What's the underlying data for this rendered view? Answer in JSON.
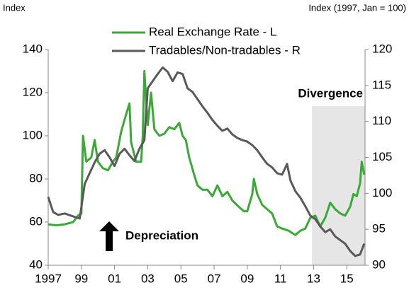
{
  "chart_data": {
    "type": "line",
    "y_label": "Index",
    "y2_label": "Index (1997, Jan = 100)",
    "annotations": [
      "Divergence",
      "Depreciation"
    ],
    "shaded_region": [
      2012.9,
      2016.1
    ],
    "xlim": [
      1997,
      2016.1
    ],
    "xticks": [
      1997,
      {
        "value": 1999,
        "label": "99"
      },
      {
        "value": 2001,
        "label": "01"
      },
      {
        "value": 2003,
        "label": "03"
      },
      {
        "value": 2005,
        "label": "05"
      },
      {
        "value": 2007,
        "label": "07"
      },
      {
        "value": 2009,
        "label": "09"
      },
      {
        "value": 2011,
        "label": "11"
      },
      {
        "value": 2013,
        "label": "13"
      },
      {
        "value": 2015,
        "label": "15"
      }
    ],
    "ylim": [
      40,
      140
    ],
    "yticks": [
      40,
      60,
      80,
      100,
      120,
      140
    ],
    "y2lim": [
      90,
      120
    ],
    "y2ticks": [
      90,
      95,
      100,
      105,
      110,
      115,
      120
    ],
    "series": [
      {
        "name": "Real Exchange Rate - L",
        "color": "#3aa935",
        "axis": "y",
        "x": [
          1997.0,
          1997.5,
          1998.0,
          1998.5,
          1998.8,
          1999.0,
          1999.1,
          1999.3,
          1999.6,
          1999.8,
          2000.0,
          2000.3,
          2000.6,
          2000.9,
          2001.1,
          2001.4,
          2001.7,
          2001.9,
          2002.0,
          2002.3,
          2002.6,
          2002.7,
          2002.8,
          2003.0,
          2003.2,
          2003.4,
          2003.7,
          2004.0,
          2004.3,
          2004.6,
          2004.9,
          2005.1,
          2005.3,
          2005.5,
          2005.8,
          2006.0,
          2006.3,
          2006.6,
          2006.9,
          2007.2,
          2007.5,
          2007.8,
          2008.1,
          2008.5,
          2008.8,
          2009.0,
          2009.3,
          2009.4,
          2009.6,
          2009.9,
          2010.2,
          2010.5,
          2010.8,
          2011.1,
          2011.5,
          2011.9,
          2012.2,
          2012.5,
          2012.8,
          2013.1,
          2013.4,
          2013.7,
          2014.0,
          2014.3,
          2014.6,
          2014.9,
          2015.2,
          2015.4,
          2015.6,
          2015.8,
          2015.9,
          2016.05
        ],
        "values": [
          59,
          58.5,
          59,
          60,
          63,
          64,
          100,
          88,
          90,
          98,
          88,
          85,
          84,
          88,
          90,
          102,
          110,
          115,
          97,
          88,
          88,
          100,
          130,
          105,
          120,
          103,
          100,
          101,
          104,
          103,
          106,
          100,
          98,
          90,
          82,
          77,
          75,
          75,
          72,
          77,
          72,
          74,
          70,
          67,
          65,
          65,
          73,
          80,
          73,
          68,
          66,
          64,
          58,
          57,
          56,
          54,
          56,
          57,
          62,
          63,
          58,
          62,
          69,
          66,
          64,
          63,
          67,
          73,
          72,
          78,
          88,
          82
        ]
      },
      {
        "name": "Tradables/Non-tradables - R",
        "color": "#595959",
        "axis": "y2",
        "x": [
          1997.0,
          1997.3,
          1997.6,
          1998.0,
          1998.5,
          1998.9,
          1999.2,
          1999.5,
          1999.8,
          2000.1,
          2000.4,
          2000.7,
          2001.0,
          2001.3,
          2001.6,
          2001.9,
          2002.2,
          2002.5,
          2002.8,
          2003.0,
          2003.3,
          2003.6,
          2003.9,
          2004.2,
          2004.5,
          2004.8,
          2005.1,
          2005.4,
          2005.7,
          2006.0,
          2006.3,
          2006.6,
          2006.9,
          2007.2,
          2007.5,
          2007.8,
          2008.1,
          2008.4,
          2008.7,
          2009.0,
          2009.3,
          2009.6,
          2009.9,
          2010.2,
          2010.5,
          2010.8,
          2011.1,
          2011.4,
          2011.6,
          2011.9,
          2012.2,
          2012.5,
          2012.8,
          2013.1,
          2013.4,
          2013.7,
          2014.0,
          2014.3,
          2014.6,
          2014.9,
          2015.2,
          2015.5,
          2015.8,
          2016.05
        ],
        "values": [
          99.5,
          97.4,
          97,
          97.2,
          96.8,
          96.5,
          101.3,
          102.8,
          104.3,
          105.5,
          106,
          105,
          103.8,
          105.5,
          106.2,
          105.3,
          104.5,
          106.2,
          107.4,
          114.6,
          115.6,
          116.6,
          117.5,
          116.9,
          115.6,
          116.8,
          116.6,
          114.6,
          114.1,
          113.1,
          112.1,
          111.2,
          110.2,
          109.4,
          108.7,
          109,
          108.2,
          107.7,
          107.4,
          107.2,
          106.7,
          106,
          105,
          104.1,
          103.6,
          102.8,
          102.6,
          104.1,
          101.8,
          100.3,
          99.4,
          98.2,
          96.9,
          96.4,
          95.4,
          94.6,
          95,
          94,
          93.5,
          93,
          92,
          91.3,
          91.5,
          93
        ]
      }
    ]
  }
}
